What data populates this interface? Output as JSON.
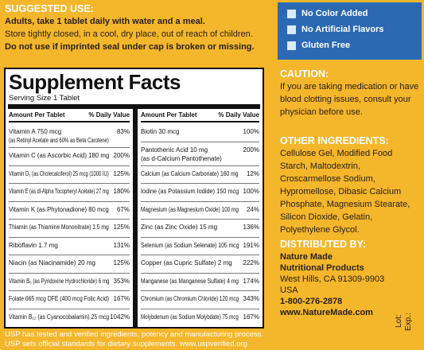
{
  "suggested_use": {
    "heading": "SUGGESTED USE:",
    "lines": [
      "Adults, take 1 tablet daily with water and a meal.",
      "Store tightly closed, in a cool, dry place, out of reach of children.",
      "Do not use if imprinted seal under cap is broken or missing."
    ]
  },
  "supplement_facts": {
    "title": "Supplement Facts",
    "serving_size": "Serving Size 1 Tablet",
    "columns": [
      {
        "amount_header": "Amount Per Tablet",
        "dv_header": "% Daily Value",
        "rows": [
          {
            "name": "Vitamin A 750 mcg",
            "sub": "(as Retinyl Acetate and 60% as Beta Carotene)",
            "dv": "83%"
          },
          {
            "name": "Vitamin C (as Ascorbic Acid) 180 mg",
            "dv": "200%"
          },
          {
            "name": "Vitamin D₃ (as Cholecalciferol) 25 mcg (1000 IU)",
            "dv": "125%"
          },
          {
            "name": "Vitamin E (as dl-Alpha Tocopheryl Acetate) 27 mg",
            "dv": "180%"
          },
          {
            "name": "Vitamin K (as Phytonadione) 80 mcg",
            "dv": "67%"
          },
          {
            "name": "Thiamin (as Thiamine Mononitrate) 1.5 mg",
            "dv": "125%"
          },
          {
            "name": "Riboflavin 1.7 mg",
            "dv": "131%"
          },
          {
            "name": "Niacin (as Niacinamide) 20 mg",
            "dv": "125%"
          },
          {
            "name": "Vitamin B₆ (as Pyridoxine Hydrochloride) 6 mg",
            "dv": "353%"
          },
          {
            "name": "Folate 665 mcg DFE (400 mcg Folic Acid)",
            "dv": "167%"
          },
          {
            "name": "Vitamin B₁₂ (as Cyanocobalamin) 25 mcg",
            "dv": "1042%"
          }
        ]
      },
      {
        "amount_header": "Amount Per Tablet",
        "dv_header": "% Daily Value",
        "rows": [
          {
            "name": "Biotin 30 mcg",
            "dv": "100%"
          },
          {
            "name": "Pantothenic Acid 10 mg",
            "sub": "(as d-Calcium Pantothenate)",
            "dv": "200%"
          },
          {
            "name": "Calcium (as Calcium Carbonate) 160 mg",
            "dv": "12%"
          },
          {
            "name": "Iodine (as Potassium Iodide) 150 mcg",
            "dv": "100%"
          },
          {
            "name": "Magnesium (as Magnesium Oxide) 100 mg",
            "dv": "24%"
          },
          {
            "name": "Zinc (as Zinc Oxide) 15 mg",
            "dv": "136%"
          },
          {
            "name": "Selenium (as Sodium Selenate) 105 mcg",
            "dv": "191%"
          },
          {
            "name": "Copper (as Cupric Sulfate) 2 mg",
            "dv": "222%"
          },
          {
            "name": "Manganese (as Manganese Sulfate) 4 mg",
            "dv": "174%"
          },
          {
            "name": "Chromium (as Chromium Chloride) 120 mcg",
            "dv": "343%"
          },
          {
            "name": "Molybdenum (as Sodium Molybdate) 75 mcg",
            "dv": "167%"
          }
        ]
      }
    ]
  },
  "badges": [
    "No Color Added",
    "No Artificial Flavors",
    "Gluten Free"
  ],
  "caution": {
    "heading": "CAUTION:",
    "lines": [
      "If you are taking medication or have",
      "blood clotting issues, consult your",
      "physician before use."
    ]
  },
  "other_ingredients": {
    "heading": "OTHER INGREDIENTS:",
    "lines": [
      "Cellulose Gel, Modified Food",
      "Starch, Maltodextrin,",
      "Croscarmellose Sodium,",
      "Hypromellose, Dibasic Calcium",
      "Phosphate, Magnesium Stearate,",
      "Silicon Dioxide, Gelatin,",
      "Polyethylene Glycol."
    ]
  },
  "distributor": {
    "heading": "DISTRIBUTED BY:",
    "lines": [
      "Nature Made",
      "Nutritional Products",
      "West Hills, CA 91309-9903",
      "USA",
      "1-800-276-2878",
      "www.NatureMade.com"
    ]
  },
  "usp": [
    "USP has tested and verified ingredients, potency and manufacturing process.",
    "USP sets official standards for dietary supplements. www.uspverified.org"
  ],
  "lot": "Lot:",
  "exp": "Exp.:"
}
